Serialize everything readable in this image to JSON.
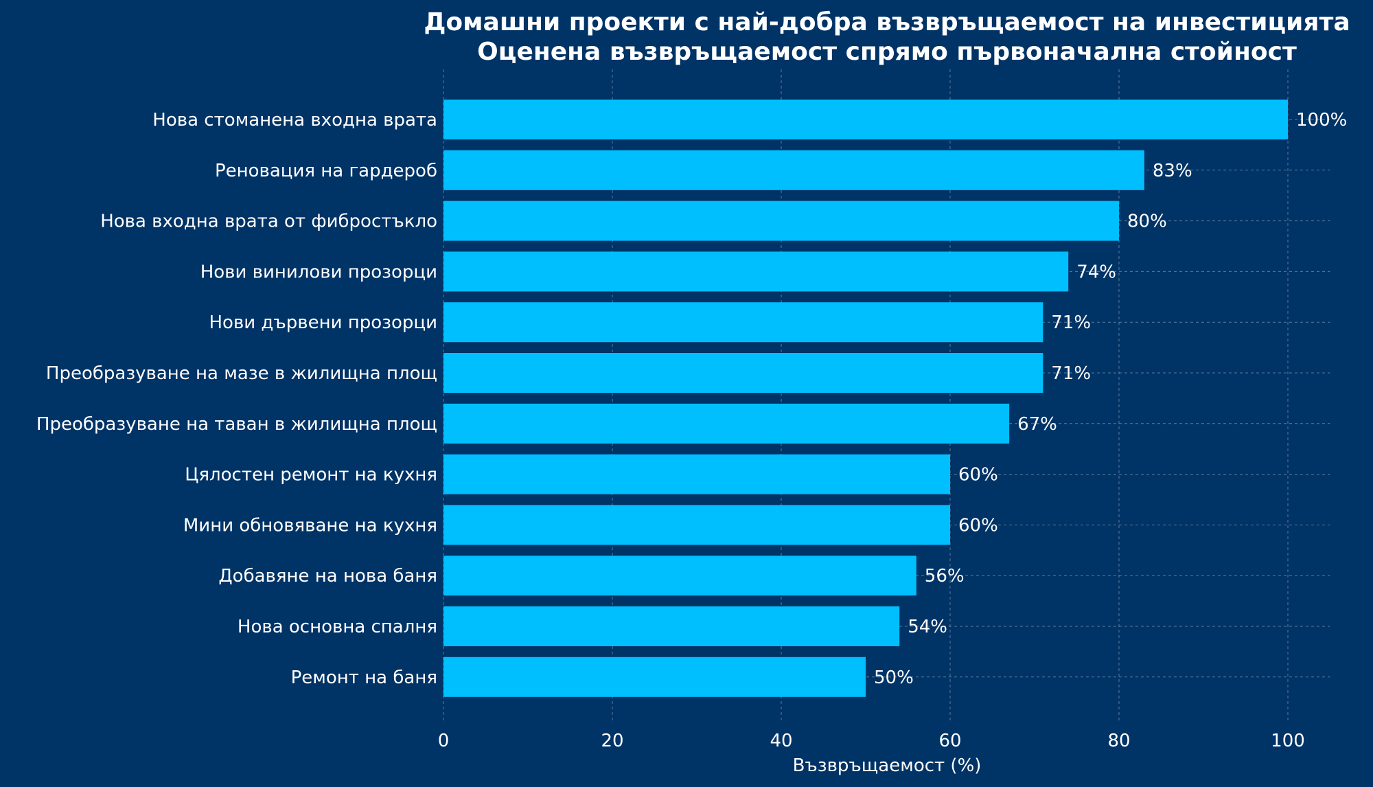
{
  "chart_data": {
    "type": "bar",
    "orientation": "horizontal",
    "title": "Домашни проекти с най-добра възвръщаемост на инвестицията",
    "subtitle": "Оценена възвръщаемост спрямо първоначална стойност",
    "xlabel": "Възвръщаемост (%)",
    "ylabel": "",
    "xlim": [
      0,
      105
    ],
    "xticks": [
      0,
      20,
      40,
      60,
      80,
      100
    ],
    "grid": true,
    "categories": [
      "Нова стоманена входна врата",
      "Реновация на гардероб",
      "Нова входна врата от фибростъкло",
      "Нови винилови прозорци",
      "Нови дървени прозорци",
      "Преобразуване на мазе в жилищна площ",
      "Преобразуване на таван в жилищна площ",
      "Цялостен ремонт на кухня",
      "Мини обновяване на кухня",
      "Добавяне на нова баня",
      "Нова основна спалня",
      "Ремонт на баня"
    ],
    "values": [
      100,
      83,
      80,
      74,
      71,
      71,
      67,
      60,
      60,
      56,
      54,
      50
    ],
    "value_labels": [
      "100%",
      "83%",
      "80%",
      "74%",
      "71%",
      "71%",
      "67%",
      "60%",
      "60%",
      "56%",
      "54%",
      "50%"
    ]
  },
  "colors": {
    "background": "#003366",
    "bar": "#00bfff",
    "text": "#ffffff",
    "grid": "#8899aa"
  }
}
